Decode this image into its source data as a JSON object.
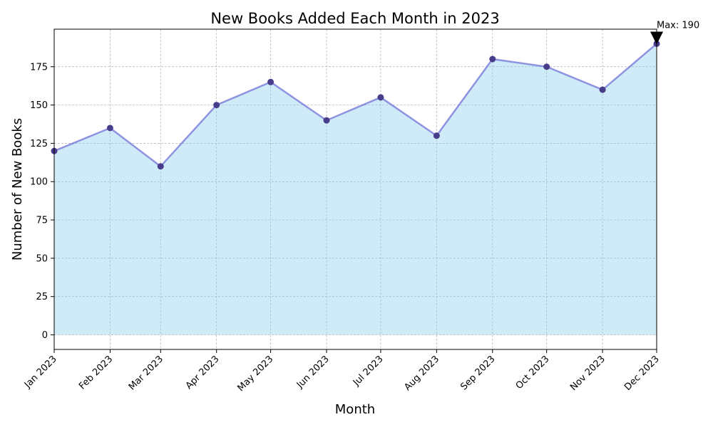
{
  "chart_data": {
    "type": "area",
    "title": "New Books Added Each Month in 2023",
    "xlabel": "Month",
    "ylabel": "Number of New Books",
    "categories": [
      "Jan 2023",
      "Feb 2023",
      "Mar 2023",
      "Apr 2023",
      "May 2023",
      "Jun 2023",
      "Jul 2023",
      "Aug 2023",
      "Sep 2023",
      "Oct 2023",
      "Nov 2023",
      "Dec 2023"
    ],
    "x": [
      "2023-01-01",
      "2023-02-01",
      "2023-03-01",
      "2023-04-01",
      "2023-05-01",
      "2023-06-01",
      "2023-07-01",
      "2023-08-01",
      "2023-09-01",
      "2023-10-01",
      "2023-11-01",
      "2023-12-01"
    ],
    "values": [
      120,
      135,
      110,
      150,
      165,
      140,
      155,
      130,
      180,
      175,
      160,
      190
    ],
    "ylim": [
      -9.5,
      199.5
    ],
    "yticks": [
      0,
      25,
      50,
      75,
      100,
      125,
      150,
      175
    ],
    "grid": true,
    "annotation": {
      "text": "Max: 190",
      "x": "2023-12-01",
      "y": 190
    },
    "colors": {
      "fill": "#87ceeb",
      "line": "#6a6ad5",
      "marker": "#483d8b",
      "grid": "#b0b0b0"
    }
  }
}
